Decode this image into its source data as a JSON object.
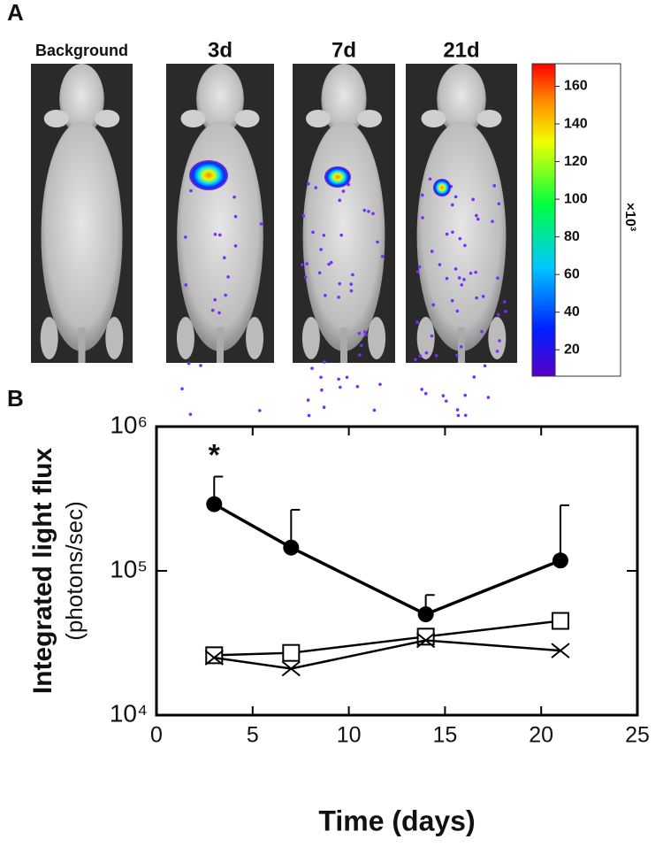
{
  "panel_a": {
    "label": "A",
    "images": [
      "Background",
      "3d",
      "7d",
      "21d"
    ],
    "colorbar": {
      "clim": [
        6,
        172
      ],
      "ticks": [
        20,
        40,
        60,
        80,
        100,
        120,
        140,
        160
      ],
      "label": "×10³"
    }
  },
  "chart_data": {
    "type": "line",
    "panel_label": "B",
    "xlabel": "Time (days)",
    "ylabel": "Integrated light flux",
    "ylabel_sub": "(photons/sec)",
    "annotation": "*",
    "x": [
      3,
      7,
      14,
      21
    ],
    "xlim": [
      0,
      25
    ],
    "xticks": [
      0,
      5,
      10,
      15,
      20,
      25
    ],
    "log_y": true,
    "ylim": [
      10000,
      1000000
    ],
    "yticks": [
      {
        "value": 10000,
        "label": "10⁴"
      },
      {
        "value": 100000,
        "label": "10⁵"
      },
      {
        "value": 1000000,
        "label": "10⁶"
      }
    ],
    "series": [
      {
        "marker": "filled-circle",
        "color": "#000000",
        "values": [
          290000,
          145000,
          50000,
          118000
        ],
        "errors": [
          160000,
          120000,
          18000,
          167000
        ]
      },
      {
        "marker": "open-square",
        "color": "#000000",
        "values": [
          26000,
          27000,
          35000,
          45000
        ]
      },
      {
        "marker": "cross",
        "color": "#000000",
        "values": [
          25000,
          21000,
          33000,
          28000
        ]
      }
    ]
  }
}
